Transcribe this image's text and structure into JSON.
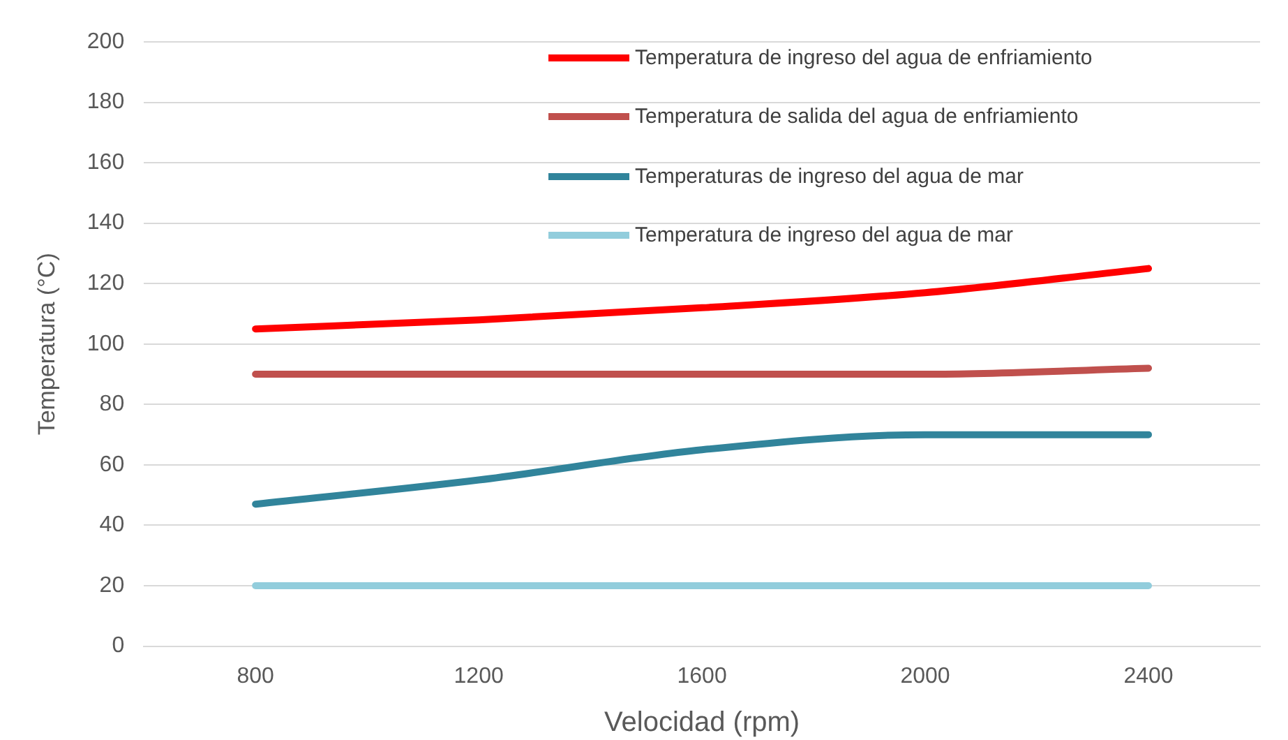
{
  "chart_data": {
    "type": "line",
    "xlabel": "Velocidad (rpm)",
    "ylabel": "Temperatura (°C)",
    "categories": [
      "800",
      "1200",
      "1600",
      "2000",
      "2400"
    ],
    "series": [
      {
        "name": "Temperatura de ingreso del agua de enfriamiento",
        "color": "#ff0000",
        "values": [
          105,
          108,
          112,
          117,
          125
        ]
      },
      {
        "name": "Temperatura de salida del agua de enfriamiento",
        "color": "#c0504d",
        "values": [
          90,
          90,
          90,
          90,
          92
        ]
      },
      {
        "name": "Temperaturas de ingreso del agua de mar",
        "color": "#31849b",
        "values": [
          47,
          55,
          65,
          70,
          70
        ]
      },
      {
        "name": "Temperatura de ingreso del agua de mar",
        "color": "#92cddc",
        "values": [
          20,
          20,
          20,
          20,
          20
        ]
      }
    ],
    "ylim": [
      0,
      200
    ],
    "yticks": [
      0,
      20,
      40,
      60,
      80,
      100,
      120,
      140,
      160,
      180,
      200
    ],
    "grid": "y",
    "legend": "top right",
    "marker": "none",
    "line_style": "solid"
  }
}
